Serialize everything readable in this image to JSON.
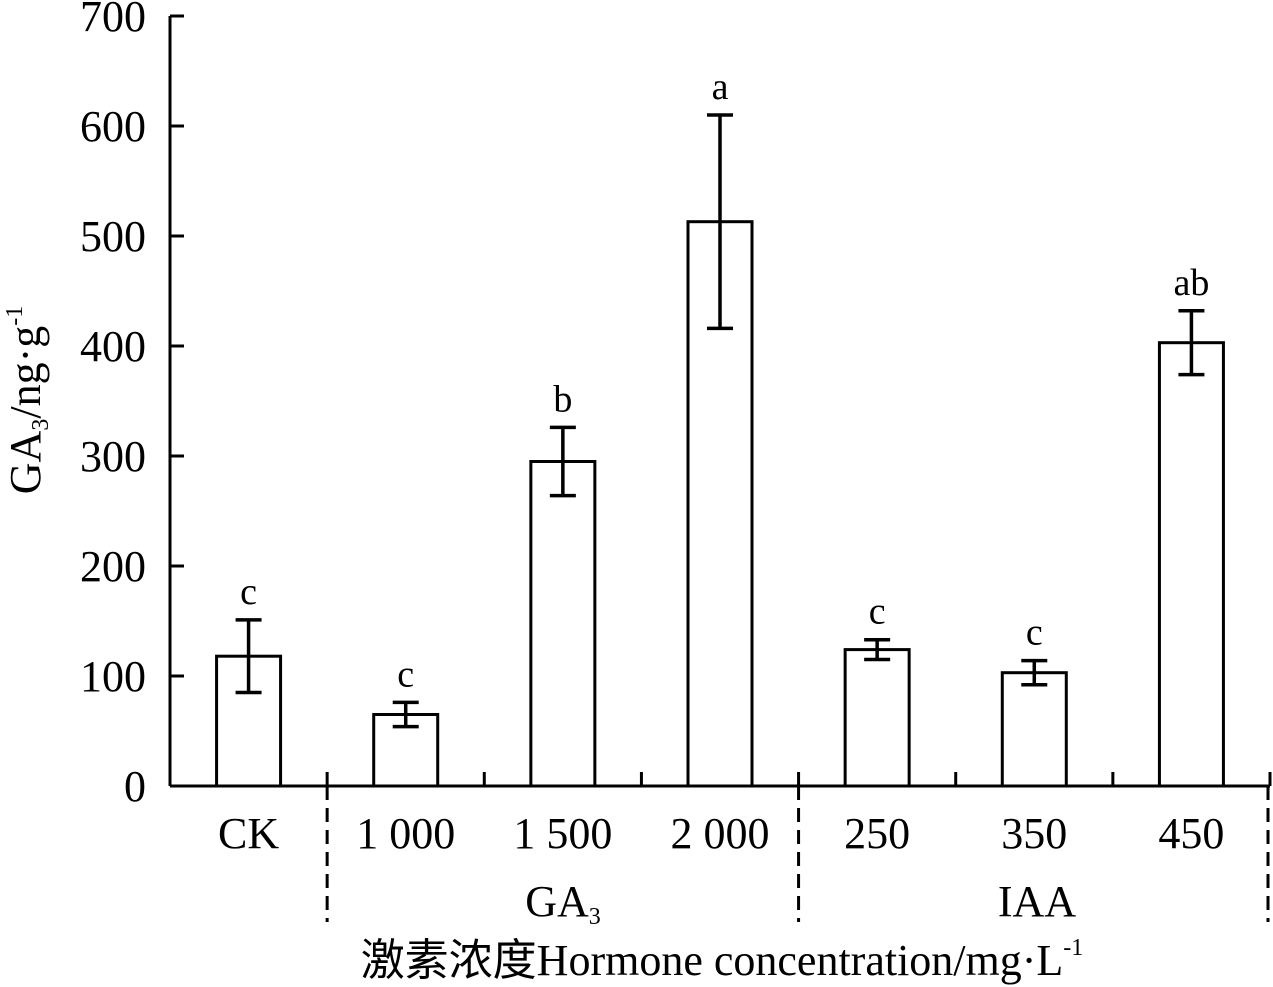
{
  "chart_data": {
    "type": "bar",
    "categories": [
      "CK",
      "1 000",
      "1 500",
      "2 000",
      "250",
      "350",
      "450"
    ],
    "values": [
      118,
      65,
      295,
      513,
      124,
      103,
      403
    ],
    "errors": [
      33,
      11,
      31,
      97,
      9,
      11,
      29
    ],
    "significance": [
      "c",
      "c",
      "b",
      "a",
      "c",
      "c",
      "ab"
    ],
    "groups": [
      {
        "label": "GA",
        "sub": "3",
        "range": [
          1,
          3
        ]
      },
      {
        "label": "IAA",
        "sub": "",
        "range": [
          4,
          6
        ]
      }
    ],
    "ylim": [
      0,
      700
    ],
    "yticks": [
      0,
      100,
      200,
      300,
      400,
      500,
      600,
      700
    ],
    "ylabel": {
      "main": "GA",
      "sub": "3",
      "rest": "/ng·g",
      "sup": "-1"
    },
    "xlabel": {
      "main": "激素浓度Hormone concentration/mg·L",
      "sup": "-1"
    },
    "grid": false
  }
}
